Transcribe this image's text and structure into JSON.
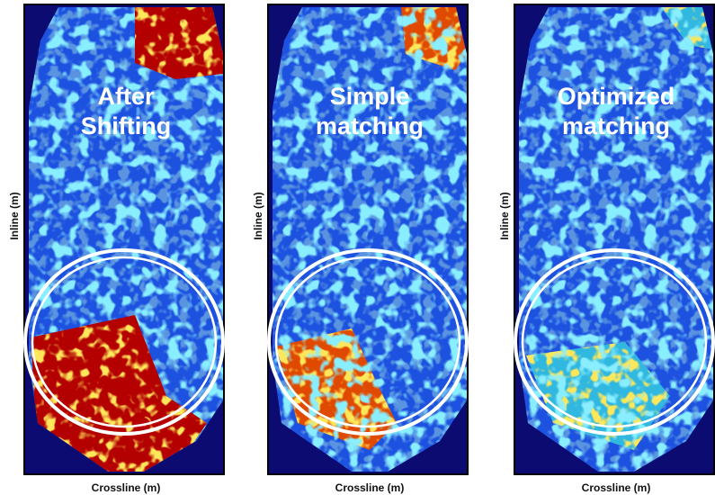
{
  "panels": [
    {
      "title": [
        "After",
        "Shifting"
      ],
      "y_label": "Inline (m)",
      "x_label": "Crossline (m)"
    },
    {
      "title": [
        "Simple",
        "matching"
      ],
      "y_label": "Inline (m)",
      "x_label": "Crossline (m)"
    },
    {
      "title": [
        "Optimized",
        "matching"
      ],
      "y_label": "Inline (m)",
      "x_label": "Crossline (m)"
    }
  ]
}
